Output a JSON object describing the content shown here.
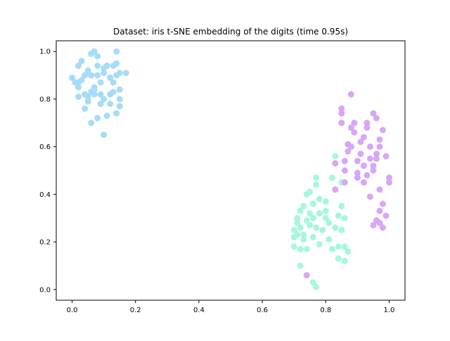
{
  "chart_data": {
    "type": "scatter",
    "title": "Dataset: iris t-SNE embedding of the digits (time 0.95s)",
    "xlabel": "",
    "ylabel": "",
    "xlim": [
      -0.05,
      1.05
    ],
    "ylim": [
      -0.045,
      1.045
    ],
    "xticks": [
      "0.0",
      "0.2",
      "0.4",
      "0.6",
      "0.8",
      "1.0"
    ],
    "yticks": [
      "0.0",
      "0.2",
      "0.4",
      "0.6",
      "0.8",
      "1.0"
    ],
    "grid": false,
    "legend": "none",
    "series": [
      {
        "color": "#a6dcf7",
        "points": [
          [
            0.0,
            0.89
          ],
          [
            0.01,
            0.87
          ],
          [
            0.02,
            0.81
          ],
          [
            0.02,
            0.94
          ],
          [
            0.03,
            0.96
          ],
          [
            0.02,
            0.85
          ],
          [
            0.03,
            0.88
          ],
          [
            0.04,
            0.82
          ],
          [
            0.05,
            0.81
          ],
          [
            0.04,
            0.76
          ],
          [
            0.05,
            0.92
          ],
          [
            0.06,
            0.99
          ],
          [
            0.07,
            1.0
          ],
          [
            0.06,
            0.9
          ],
          [
            0.07,
            0.85
          ],
          [
            0.07,
            0.82
          ],
          [
            0.08,
            0.9
          ],
          [
            0.08,
            0.94
          ],
          [
            0.09,
            0.87
          ],
          [
            0.1,
            0.91
          ],
          [
            0.06,
            0.7
          ],
          [
            0.08,
            0.72
          ],
          [
            0.09,
            0.78
          ],
          [
            0.1,
            0.8
          ],
          [
            0.1,
            0.65
          ],
          [
            0.11,
            0.73
          ],
          [
            0.11,
            0.94
          ],
          [
            0.12,
            0.89
          ],
          [
            0.13,
            0.94
          ],
          [
            0.13,
            0.83
          ],
          [
            0.12,
            0.82
          ],
          [
            0.14,
            1.0
          ],
          [
            0.14,
            0.95
          ],
          [
            0.15,
            0.91
          ],
          [
            0.15,
            0.84
          ],
          [
            0.15,
            0.8
          ],
          [
            0.15,
            0.77
          ],
          [
            0.14,
            0.74
          ],
          [
            0.17,
            0.91
          ],
          [
            0.05,
            0.79
          ],
          [
            0.07,
            0.84
          ],
          [
            0.12,
            0.78
          ],
          [
            0.04,
            0.9
          ],
          [
            0.1,
            0.93
          ],
          [
            0.08,
            0.98
          ],
          [
            0.13,
            0.87
          ],
          [
            0.06,
            0.83
          ],
          [
            0.02,
            0.87
          ],
          [
            0.09,
            0.82
          ],
          [
            0.14,
            0.9
          ]
        ]
      },
      {
        "color": "#a6f7dc",
        "points": [
          [
            0.7,
            0.25
          ],
          [
            0.7,
            0.22
          ],
          [
            0.7,
            0.18
          ],
          [
            0.71,
            0.28
          ],
          [
            0.71,
            0.23
          ],
          [
            0.72,
            0.33
          ],
          [
            0.72,
            0.26
          ],
          [
            0.72,
            0.17
          ],
          [
            0.72,
            0.1
          ],
          [
            0.73,
            0.21
          ],
          [
            0.73,
            0.35
          ],
          [
            0.74,
            0.29
          ],
          [
            0.74,
            0.17
          ],
          [
            0.74,
            0.4
          ],
          [
            0.75,
            0.32
          ],
          [
            0.75,
            0.27
          ],
          [
            0.75,
            0.41
          ],
          [
            0.76,
            0.36
          ],
          [
            0.76,
            0.3
          ],
          [
            0.77,
            0.47
          ],
          [
            0.77,
            0.44
          ],
          [
            0.77,
            0.26
          ],
          [
            0.76,
            0.03
          ],
          [
            0.77,
            0.01
          ],
          [
            0.78,
            0.38
          ],
          [
            0.78,
            0.32
          ],
          [
            0.79,
            0.25
          ],
          [
            0.8,
            0.37
          ],
          [
            0.8,
            0.33
          ],
          [
            0.8,
            0.3
          ],
          [
            0.81,
            0.21
          ],
          [
            0.82,
            0.47
          ],
          [
            0.82,
            0.17
          ],
          [
            0.83,
            0.26
          ],
          [
            0.83,
            0.56
          ],
          [
            0.84,
            0.18
          ],
          [
            0.84,
            0.13
          ],
          [
            0.85,
            0.35
          ],
          [
            0.85,
            0.25
          ],
          [
            0.86,
            0.18
          ],
          [
            0.86,
            0.12
          ],
          [
            0.86,
            0.3
          ],
          [
            0.87,
            0.16
          ],
          [
            0.85,
            0.45
          ],
          [
            0.84,
            0.31
          ],
          [
            0.73,
            0.23
          ],
          [
            0.78,
            0.19
          ],
          [
            0.81,
            0.28
          ],
          [
            0.76,
            0.22
          ],
          [
            0.71,
            0.3
          ]
        ]
      },
      {
        "color": "#d8a6f7",
        "points": [
          [
            0.74,
            0.06
          ],
          [
            0.83,
            0.53
          ],
          [
            0.83,
            0.42
          ],
          [
            0.85,
            0.74
          ],
          [
            0.85,
            0.76
          ],
          [
            0.85,
            0.7
          ],
          [
            0.86,
            0.54
          ],
          [
            0.86,
            0.5
          ],
          [
            0.86,
            0.45
          ],
          [
            0.87,
            0.58
          ],
          [
            0.87,
            0.61
          ],
          [
            0.88,
            0.68
          ],
          [
            0.88,
            0.82
          ],
          [
            0.89,
            0.66
          ],
          [
            0.9,
            0.54
          ],
          [
            0.9,
            0.49
          ],
          [
            0.9,
            0.47
          ],
          [
            0.91,
            0.62
          ],
          [
            0.92,
            0.64
          ],
          [
            0.92,
            0.52
          ],
          [
            0.93,
            0.68
          ],
          [
            0.94,
            0.6
          ],
          [
            0.94,
            0.55
          ],
          [
            0.95,
            0.5
          ],
          [
            0.95,
            0.52
          ],
          [
            0.95,
            0.74
          ],
          [
            0.96,
            0.72
          ],
          [
            0.96,
            0.57
          ],
          [
            0.96,
            0.55
          ],
          [
            0.97,
            0.6
          ],
          [
            0.97,
            0.42
          ],
          [
            0.97,
            0.33
          ],
          [
            0.97,
            0.28
          ],
          [
            0.98,
            0.26
          ],
          [
            0.98,
            0.36
          ],
          [
            0.99,
            0.56
          ],
          [
            1.0,
            0.47
          ],
          [
            1.0,
            0.45
          ],
          [
            0.95,
            0.27
          ],
          [
            0.96,
            0.29
          ],
          [
            0.91,
            0.57
          ],
          [
            0.93,
            0.48
          ],
          [
            0.89,
            0.7
          ],
          [
            0.98,
            0.67
          ],
          [
            0.94,
            0.39
          ],
          [
            0.88,
            0.6
          ],
          [
            0.92,
            0.45
          ],
          [
            0.97,
            0.63
          ],
          [
            0.99,
            0.31
          ],
          [
            0.93,
            0.7
          ]
        ]
      }
    ]
  }
}
